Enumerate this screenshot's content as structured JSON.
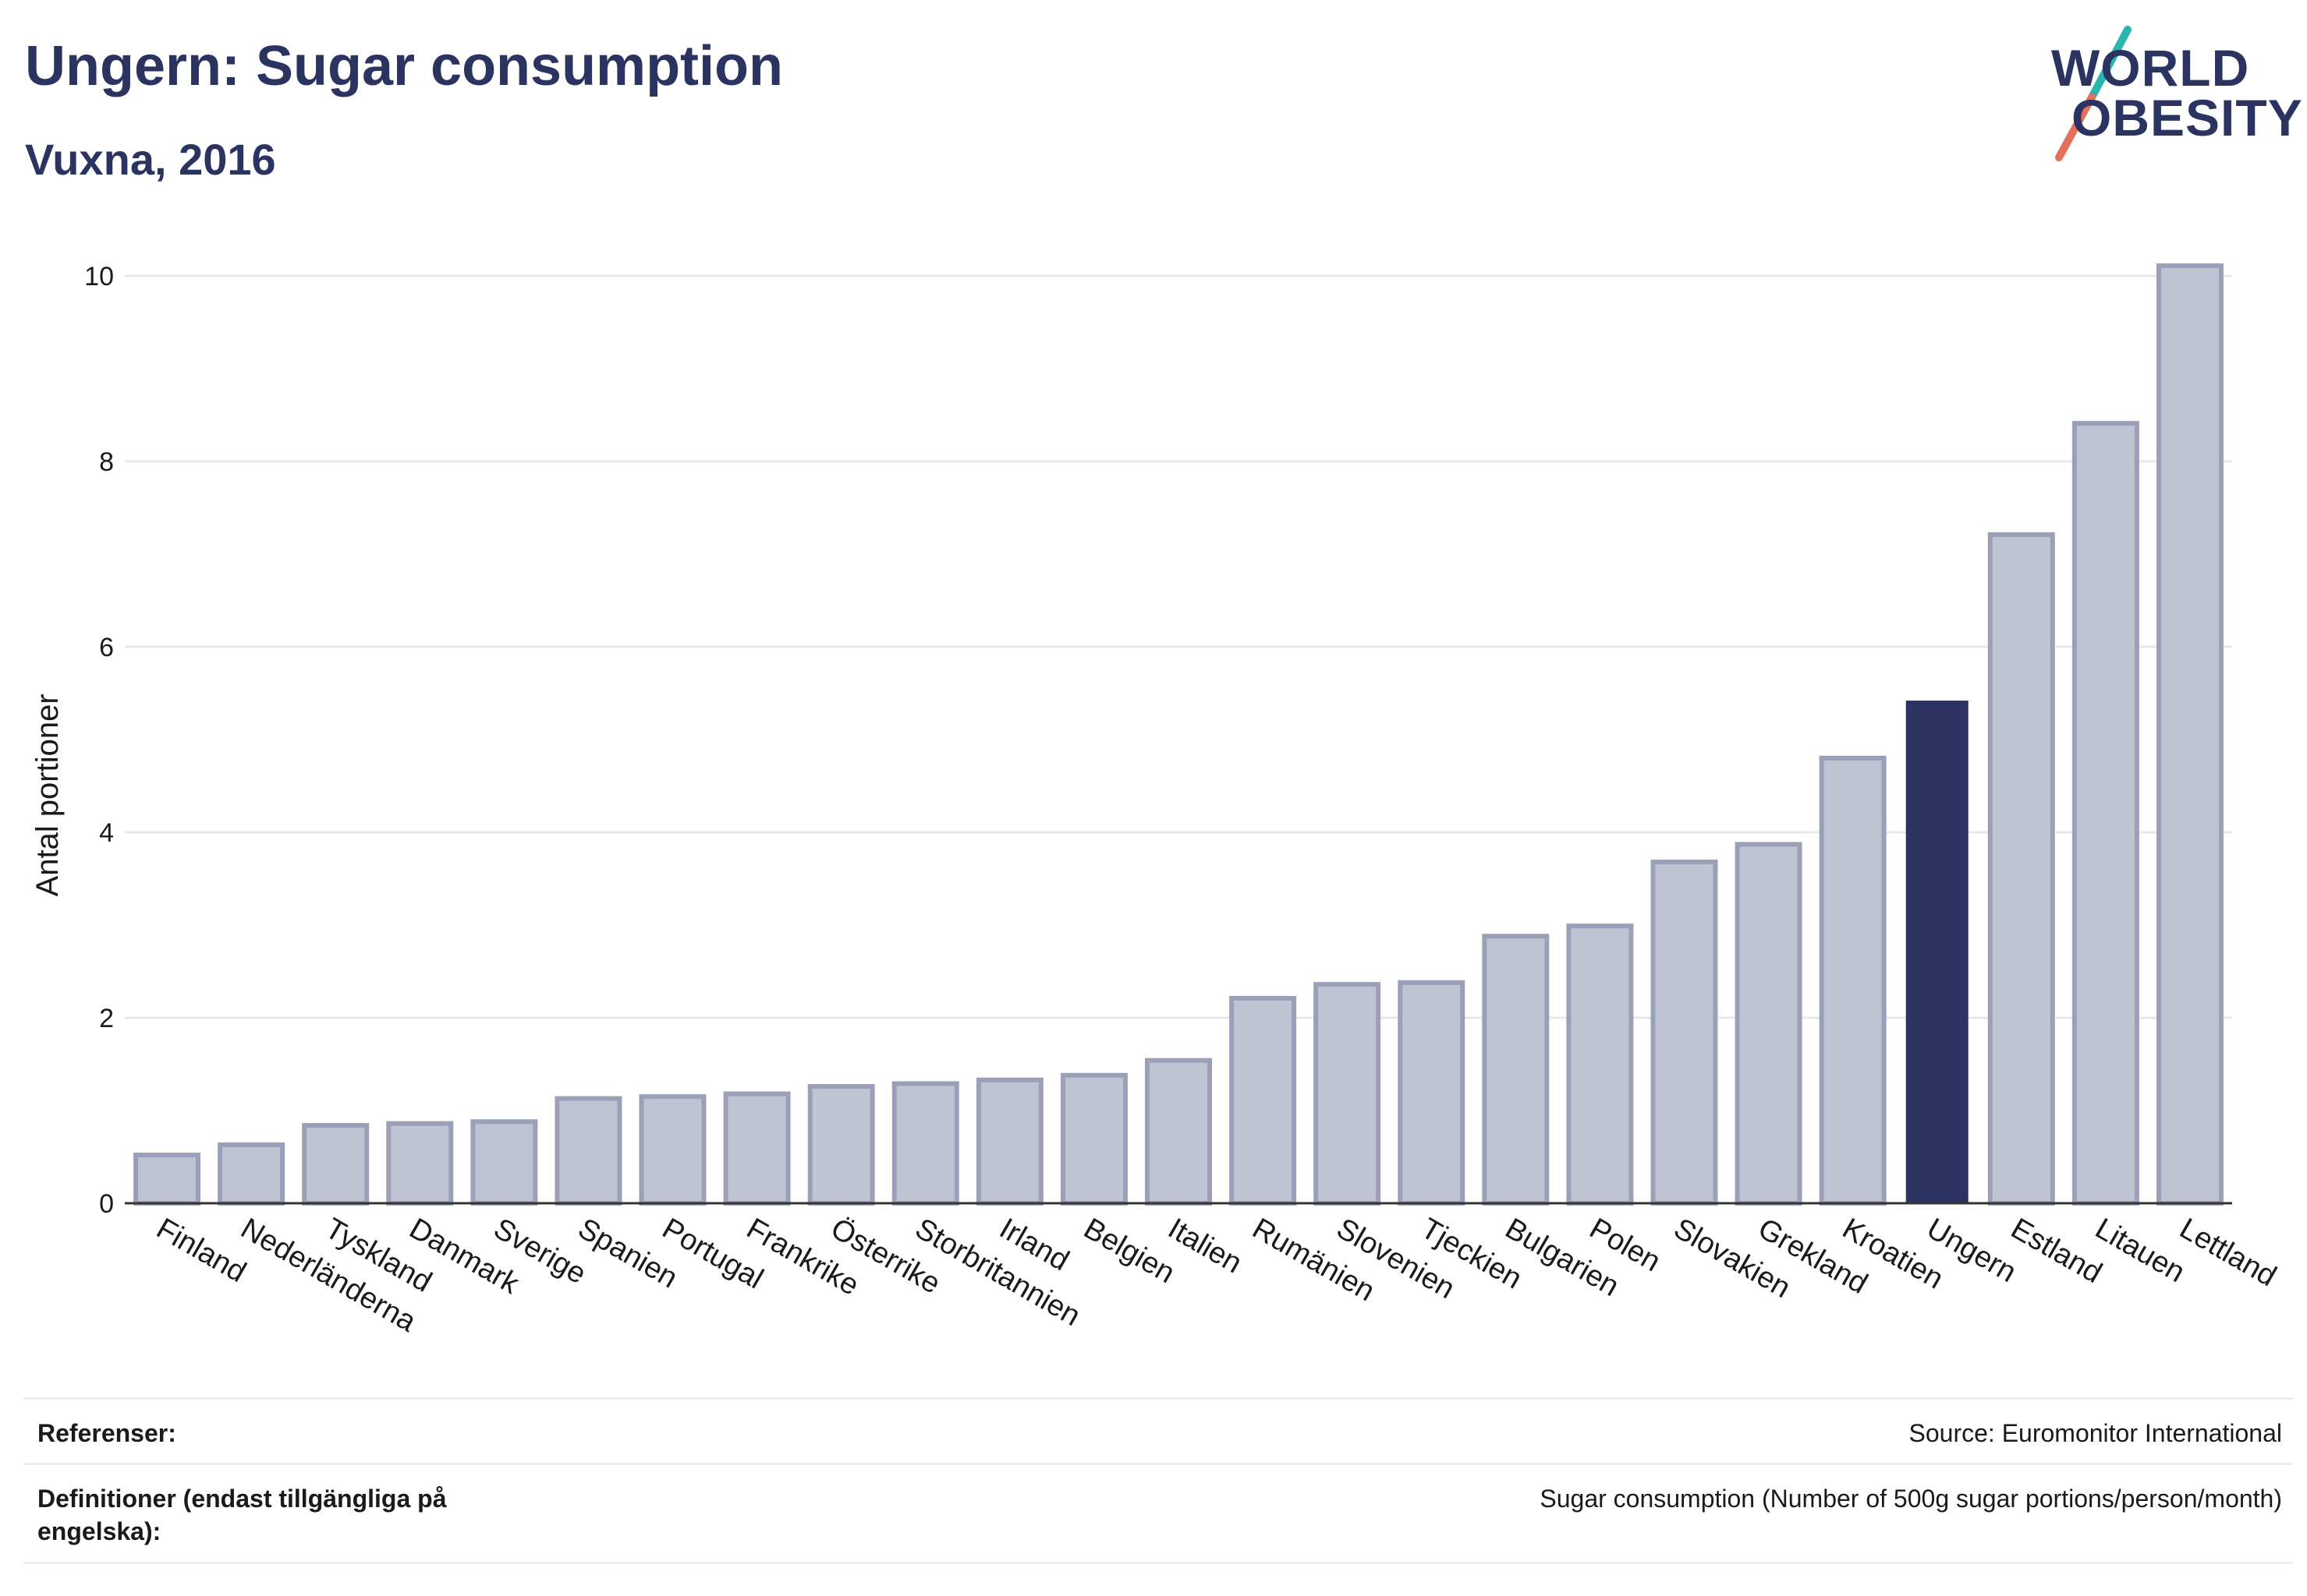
{
  "header": {
    "title": "Ungern: Sugar consumption",
    "subtitle": "Vuxna, 2016"
  },
  "logo": {
    "line1": "WORLD",
    "line2": "OBESITY",
    "accent_colors": [
      "#2bb5b0",
      "#e4705a"
    ]
  },
  "colors": {
    "bar": "#c0c4d2",
    "bar_stroke": "#9aa0b8",
    "highlight": "#2b3461",
    "grid": "#e6e8ee",
    "text": "#1a1a1a"
  },
  "chart_data": {
    "type": "bar",
    "title": "Ungern: Sugar consumption",
    "subtitle": "Vuxna, 2016",
    "ylabel": "Antal portioner",
    "xlabel": "",
    "ylim": [
      0,
      10.5
    ],
    "yticks": [
      0,
      2,
      4,
      6,
      8,
      10
    ],
    "grid": true,
    "highlight": "Ungern",
    "categories": [
      "Finland",
      "Nederländerna",
      "Tyskland",
      "Danmark",
      "Sverige",
      "Spanien",
      "Portugal",
      "Frankrike",
      "Österrike",
      "Storbritannien",
      "Irland",
      "Belgien",
      "Italien",
      "Rumänien",
      "Slovenien",
      "Tjeckien",
      "Bulgarien",
      "Polen",
      "Slovakien",
      "Grekland",
      "Kroatien",
      "Ungern",
      "Estland",
      "Litauen",
      "Lettland"
    ],
    "values": [
      0.52,
      0.63,
      0.84,
      0.86,
      0.88,
      1.13,
      1.15,
      1.18,
      1.26,
      1.29,
      1.33,
      1.38,
      1.54,
      2.21,
      2.36,
      2.38,
      2.88,
      2.99,
      3.68,
      3.87,
      4.8,
      5.42,
      7.21,
      8.41,
      10.11
    ]
  },
  "footer": {
    "references_label": "Referenser:",
    "references_value": "Source: Euromonitor International",
    "definitions_label": "Definitioner (endast tillgängliga på engelska):",
    "definitions_value": "Sugar consumption (Number of 500g sugar portions/person/month)"
  }
}
